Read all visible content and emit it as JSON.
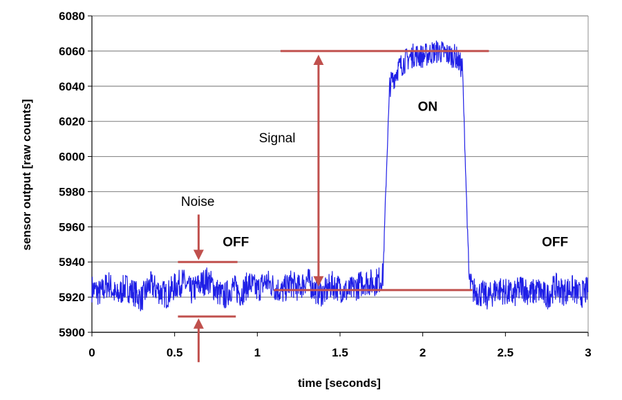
{
  "chart_data": {
    "type": "line",
    "xlabel": "time [seconds]",
    "ylabel": "sensor output [raw counts]",
    "xlim": [
      0,
      3
    ],
    "ylim": [
      5900,
      6080
    ],
    "x_ticks": [
      "0",
      "0.5",
      "1",
      "1.5",
      "2",
      "2.5",
      "3"
    ],
    "y_ticks": [
      "5900",
      "5920",
      "5940",
      "5960",
      "5980",
      "6000",
      "6020",
      "6040",
      "6060",
      "6080"
    ],
    "grid": "horizontal",
    "series": [
      {
        "color": "#1f1fe6",
        "x": [
          0,
          0.05,
          0.1,
          0.15,
          0.2,
          0.25,
          0.3,
          0.35,
          0.4,
          0.45,
          0.5,
          0.55,
          0.6,
          0.65,
          0.7,
          0.75,
          0.8,
          0.85,
          0.9,
          0.95,
          1.0,
          1.05,
          1.1,
          1.15,
          1.2,
          1.25,
          1.3,
          1.35,
          1.4,
          1.45,
          1.5,
          1.55,
          1.6,
          1.65,
          1.7,
          1.74,
          1.76,
          1.78,
          1.8,
          1.85,
          1.9,
          1.95,
          2.0,
          2.05,
          2.1,
          2.15,
          2.2,
          2.24,
          2.26,
          2.28,
          2.3,
          2.35,
          2.4,
          2.45,
          2.5,
          2.55,
          2.6,
          2.65,
          2.7,
          2.75,
          2.8,
          2.85,
          2.9,
          2.95,
          3.0
        ],
        "values": [
          5925,
          5922,
          5928,
          5920,
          5926,
          5923,
          5919,
          5927,
          5924,
          5921,
          5926,
          5929,
          5923,
          5927,
          5930,
          5924,
          5920,
          5926,
          5922,
          5928,
          5924,
          5929,
          5926,
          5923,
          5928,
          5925,
          5930,
          5924,
          5922,
          5927,
          5925,
          5923,
          5926,
          5929,
          5928,
          5930,
          5932,
          5990,
          6040,
          6050,
          6055,
          6058,
          6057,
          6059,
          6060,
          6058,
          6057,
          6050,
          5990,
          5930,
          5924,
          5922,
          5920,
          5925,
          5923,
          5921,
          5926,
          5922,
          5924,
          5920,
          5926,
          5923,
          5925,
          5921,
          5924
        ]
      }
    ],
    "annotations": [
      {
        "text": "Signal"
      },
      {
        "text": "Noise"
      },
      {
        "text": "OFF"
      },
      {
        "text": "ON"
      },
      {
        "text": "OFF"
      }
    ],
    "annotation_lines": [
      {
        "x": [
          1.14,
          2.4
        ],
        "y": [
          6060,
          6060
        ]
      },
      {
        "x": [
          1.1,
          2.3
        ],
        "y": [
          5924,
          5924
        ]
      },
      {
        "x": [
          0.52,
          0.88
        ],
        "y": [
          5940,
          5940
        ]
      },
      {
        "x": [
          0.52,
          0.87
        ],
        "y": [
          5909,
          5909
        ]
      }
    ]
  }
}
